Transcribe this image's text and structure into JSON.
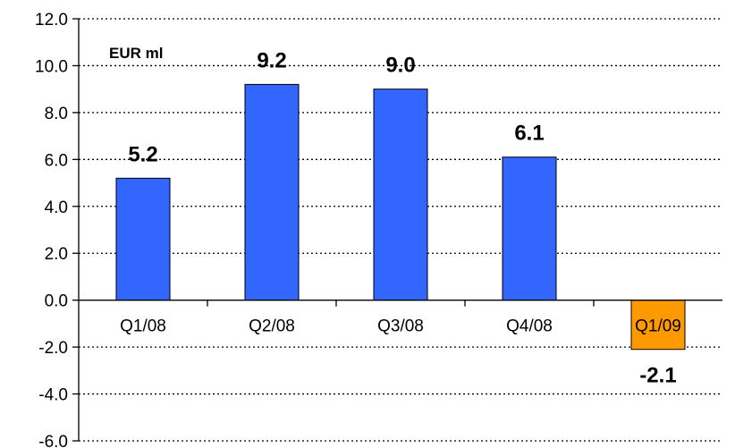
{
  "chart_data": {
    "type": "bar",
    "unit_label": "EUR ml",
    "categories": [
      "Q1/08",
      "Q2/08",
      "Q3/08",
      "Q4/08",
      "Q1/09"
    ],
    "values": [
      5.2,
      9.2,
      9.0,
      6.1,
      -2.1
    ],
    "data_labels": [
      "5.2",
      "9.2",
      "9.0",
      "6.1",
      "-2.1"
    ],
    "ylim": [
      -6.0,
      12.0
    ],
    "yticks": [
      -6.0,
      -4.0,
      -2.0,
      0.0,
      2.0,
      4.0,
      6.0,
      8.0,
      10.0,
      12.0
    ],
    "ytick_labels": [
      "-6.0",
      "-4.0",
      "-2.0",
      "0.0",
      "2.0",
      "4.0",
      "6.0",
      "8.0",
      "10.0",
      "12.0"
    ],
    "grid": true,
    "grid_style": "dotted",
    "legend": "none",
    "colors": {
      "positive_bar": "#3366FF",
      "negative_bar": "#FF9900",
      "bar_outline": "#000000",
      "axis": "#000000",
      "grid": "#000000"
    }
  }
}
